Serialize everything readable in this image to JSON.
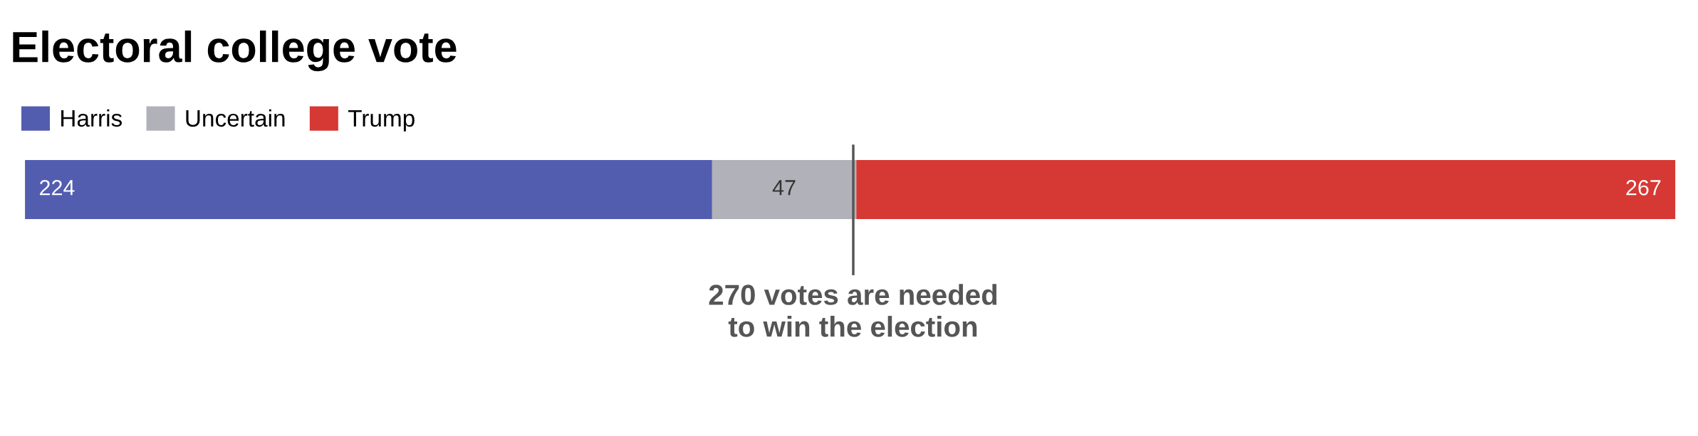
{
  "chart_data": {
    "type": "bar",
    "orientation": "horizontal",
    "stacked": true,
    "title": "Electoral college vote",
    "categories": [
      null
    ],
    "series": [
      {
        "name": "Harris",
        "color": "#535db0",
        "values": [
          224
        ]
      },
      {
        "name": "Uncertain",
        "color": "#b1b1b9",
        "values": [
          47
        ]
      },
      {
        "name": "Trump",
        "color": "#d63834",
        "values": [
          267
        ]
      }
    ],
    "data_labels": true,
    "legend": "top left",
    "ref_lines": [
      {
        "axis": "x",
        "value": 270,
        "label": "270 votes are needed\nto win the election",
        "color": "#555555"
      }
    ]
  }
}
